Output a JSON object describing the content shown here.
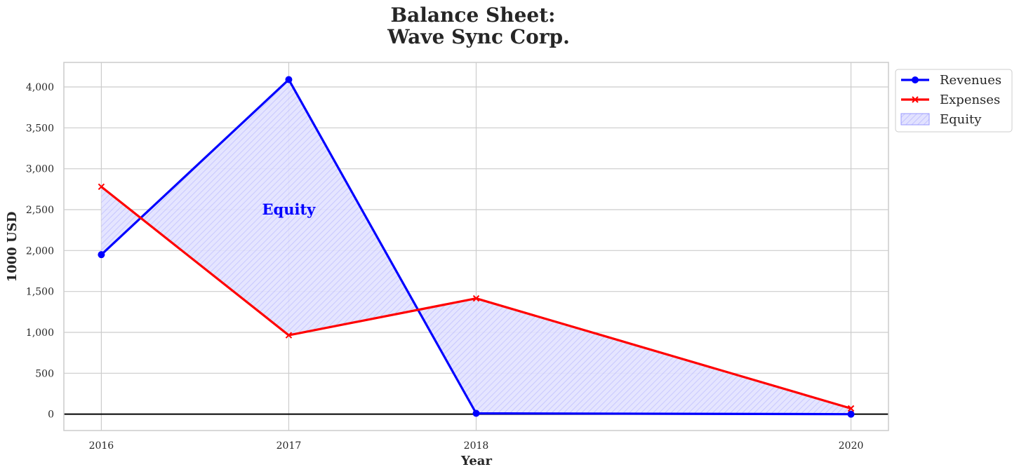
{
  "chart_data": {
    "type": "line",
    "title": "Balance Sheet:",
    "subtitle": "Wave Sync Corp.",
    "xlabel": "Year",
    "ylabel": "1000 USD",
    "x": [
      2016,
      2017,
      2018,
      2020
    ],
    "x_tick_labels": [
      "2016",
      "2017",
      "2018",
      "2020"
    ],
    "xlim": [
      2015.8,
      2020.2
    ],
    "ylim": [
      -200,
      4300
    ],
    "y_ticks": [
      0,
      500,
      1000,
      1500,
      2000,
      2500,
      3000,
      3500,
      4000
    ],
    "y_tick_labels": [
      "0",
      "500",
      "1,000",
      "1,500",
      "2,000",
      "2,500",
      "3,000",
      "3,500",
      "4,000"
    ],
    "grid": true,
    "legend_position": "outside-top-right",
    "series": [
      {
        "name": "Revenues",
        "values": [
          1950,
          4090,
          10,
          0
        ],
        "color": "#0000ff",
        "marker": "circle"
      },
      {
        "name": "Expenses",
        "values": [
          2780,
          965,
          1415,
          70
        ],
        "color": "#ff0000",
        "marker": "x"
      }
    ],
    "fill": {
      "name": "Equity",
      "between": [
        "Revenues",
        "Expenses"
      ],
      "color": "#0000ff",
      "hatch": "diagonal"
    },
    "annotations": [
      {
        "text": "Equity",
        "x": 2017,
        "y": 2500,
        "color": "#0000ff"
      }
    ],
    "zero_line": true
  }
}
